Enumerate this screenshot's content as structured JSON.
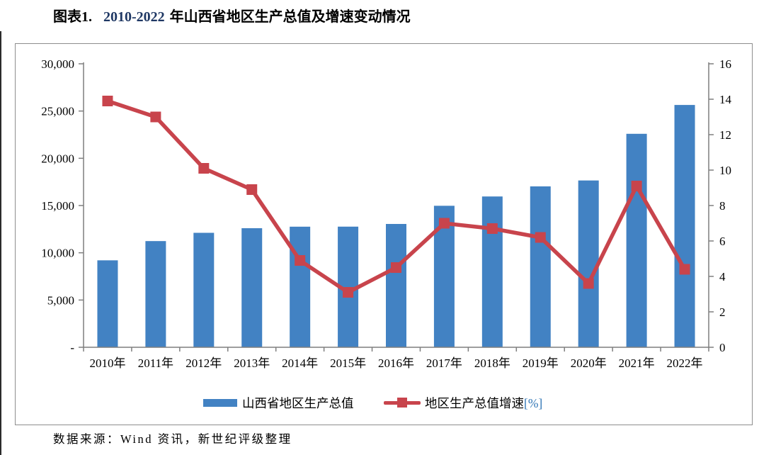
{
  "title": {
    "prefix": "图表1.",
    "range": "2010-2022",
    "suffix": "年山西省地区生产总值及增速变动情况"
  },
  "source": "数据来源：Wind 资讯，新世纪评级整理",
  "legend": {
    "items": [
      {
        "label": "山西省地区生产总值",
        "type": "bar"
      },
      {
        "label": "地区生产总值增速",
        "unit": "[%]",
        "type": "line"
      }
    ]
  },
  "colors": {
    "bar": "#4282C3",
    "line": "#C8444C",
    "marker": "#C8444C",
    "axis": "#7f7f7f",
    "title_accent": "#1F3864",
    "unit_blue": "#2E74B5",
    "text": "#000000"
  },
  "chart_data": {
    "type": "bar",
    "combo": "bar+line",
    "title": "图表1. 2010-2022 年山西省地区生产总值及增速变动情况",
    "categories": [
      "2010年",
      "2011年",
      "2012年",
      "2013年",
      "2014年",
      "2015年",
      "2016年",
      "2017年",
      "2018年",
      "2019年",
      "2020年",
      "2021年",
      "2022年"
    ],
    "series": [
      {
        "name": "山西省地区生产总值",
        "type": "bar",
        "axis": "left",
        "values": [
          9200.86,
          11237.55,
          12112.83,
          12602.24,
          12761.49,
          12766.49,
          13050.41,
          14973.51,
          15958.13,
          17026.68,
          17651.93,
          22590.16,
          25642.59
        ]
      },
      {
        "name": "地区生产总值增速[%]",
        "type": "line",
        "axis": "right",
        "values": [
          13.9,
          13.0,
          10.1,
          8.9,
          4.9,
          3.1,
          4.5,
          7.0,
          6.7,
          6.2,
          3.6,
          9.1,
          4.4
        ]
      }
    ],
    "left_axis": {
      "min": 0,
      "max": 30000,
      "tick_labels": [
        "-",
        "5,000",
        "10,000",
        "15,000",
        "20,000",
        "25,000",
        "30,000"
      ]
    },
    "right_axis": {
      "min": 0,
      "max": 16,
      "tick_labels": [
        "0",
        "2",
        "4",
        "6",
        "8",
        "10",
        "12",
        "14",
        "16"
      ]
    },
    "grid": false,
    "legend_position": "bottom"
  }
}
